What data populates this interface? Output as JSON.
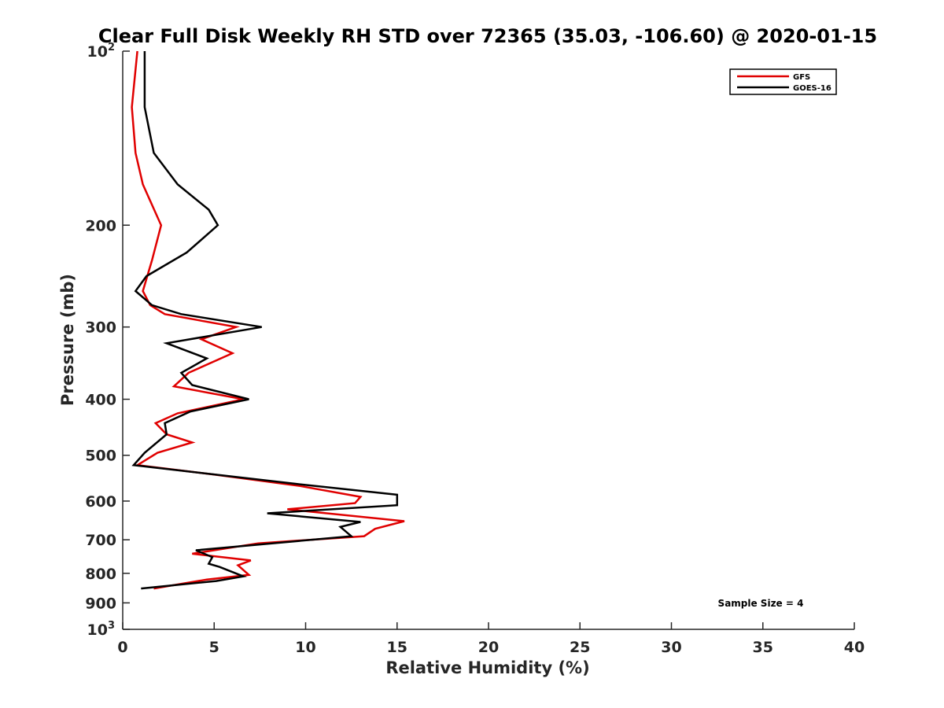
{
  "chart_data": {
    "type": "line",
    "title": "Clear Full Disk Weekly RH STD over 72365 (35.03, -106.60) @ 2020-01-15",
    "xlabel": "Relative Humidity (%)",
    "ylabel": "Pressure (mb)",
    "xlim": [
      0,
      40
    ],
    "ylim": [
      100,
      1000
    ],
    "y_scale": "log",
    "y_reversed": true,
    "x_ticks": [
      0,
      5,
      10,
      15,
      20,
      25,
      30,
      35,
      40
    ],
    "x_tick_labels": [
      "0",
      "5",
      "10",
      "15",
      "20",
      "25",
      "30",
      "35",
      "40"
    ],
    "y_ticks": [
      {
        "value": 100,
        "label": "10",
        "sup": "2"
      },
      {
        "value": 200,
        "label": "200",
        "sup": ""
      },
      {
        "value": 300,
        "label": "300",
        "sup": ""
      },
      {
        "value": 400,
        "label": "400",
        "sup": ""
      },
      {
        "value": 500,
        "label": "500",
        "sup": ""
      },
      {
        "value": 600,
        "label": "600",
        "sup": ""
      },
      {
        "value": 700,
        "label": "700",
        "sup": ""
      },
      {
        "value": 800,
        "label": "800",
        "sup": ""
      },
      {
        "value": 900,
        "label": "900",
        "sup": ""
      },
      {
        "value": 1000,
        "label": "10",
        "sup": "3"
      }
    ],
    "grid": false,
    "legend_position": "top-right",
    "annotation": "Sample Size = 4",
    "series": [
      {
        "name": "GFS",
        "color": "#e00000",
        "points": [
          [
            0.8,
            100
          ],
          [
            0.5,
            125
          ],
          [
            0.7,
            150
          ],
          [
            1.1,
            170
          ],
          [
            2.1,
            200
          ],
          [
            1.6,
            230
          ],
          [
            1.1,
            260
          ],
          [
            1.5,
            275
          ],
          [
            2.3,
            285
          ],
          [
            6.2,
            300
          ],
          [
            4.3,
            315
          ],
          [
            6.0,
            333
          ],
          [
            3.6,
            360
          ],
          [
            2.8,
            380
          ],
          [
            6.6,
            400
          ],
          [
            3.0,
            423
          ],
          [
            1.8,
            440
          ],
          [
            2.4,
            460
          ],
          [
            3.8,
            475
          ],
          [
            1.9,
            495
          ],
          [
            0.8,
            520
          ],
          [
            5.0,
            540
          ],
          [
            9.7,
            565
          ],
          [
            13.0,
            590
          ],
          [
            12.7,
            605
          ],
          [
            9.0,
            620
          ],
          [
            15.4,
            650
          ],
          [
            13.8,
            670
          ],
          [
            13.2,
            690
          ],
          [
            7.4,
            710
          ],
          [
            3.8,
            740
          ],
          [
            7.0,
            760
          ],
          [
            6.3,
            775
          ],
          [
            6.9,
            805
          ],
          [
            4.6,
            820
          ],
          [
            1.7,
            850
          ]
        ]
      },
      {
        "name": "GOES-16",
        "color": "#000000",
        "points": [
          [
            1.2,
            100
          ],
          [
            1.2,
            125
          ],
          [
            1.7,
            150
          ],
          [
            3.0,
            170
          ],
          [
            4.7,
            188
          ],
          [
            5.2,
            200
          ],
          [
            3.5,
            223
          ],
          [
            1.3,
            245
          ],
          [
            0.7,
            260
          ],
          [
            1.6,
            275
          ],
          [
            3.2,
            285
          ],
          [
            7.6,
            300
          ],
          [
            2.4,
            320
          ],
          [
            4.6,
            340
          ],
          [
            3.2,
            360
          ],
          [
            3.8,
            378
          ],
          [
            6.9,
            400
          ],
          [
            3.7,
            420
          ],
          [
            2.3,
            440
          ],
          [
            2.4,
            460
          ],
          [
            1.2,
            495
          ],
          [
            0.6,
            520
          ],
          [
            9.4,
            560
          ],
          [
            15.0,
            585
          ],
          [
            15.0,
            610
          ],
          [
            7.9,
            630
          ],
          [
            13.0,
            652
          ],
          [
            11.9,
            665
          ],
          [
            12.5,
            690
          ],
          [
            4.0,
            730
          ],
          [
            4.9,
            750
          ],
          [
            4.7,
            770
          ],
          [
            5.3,
            780
          ],
          [
            6.6,
            810
          ],
          [
            5.1,
            825
          ],
          [
            1.0,
            850
          ]
        ]
      }
    ]
  }
}
